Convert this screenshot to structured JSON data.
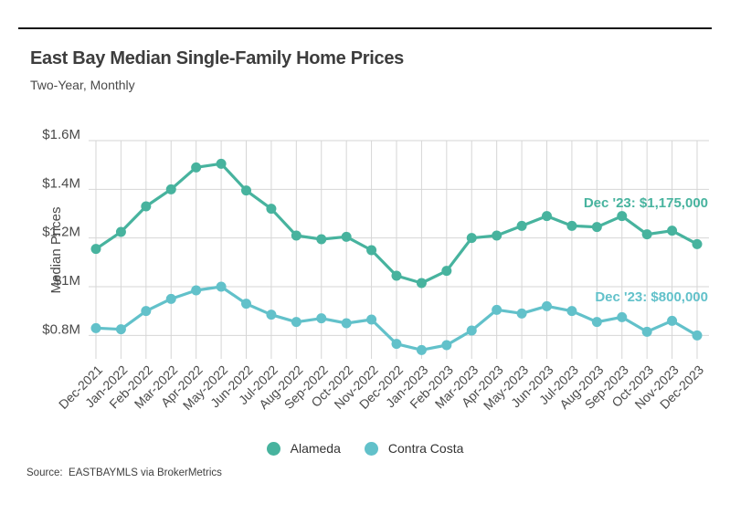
{
  "page": {
    "title": "East Bay Median Single-Family Home Prices",
    "subtitle": "Two-Year, Monthly",
    "source": "Source:  EASTBAYMLS via BrokerMetrics"
  },
  "legend": {
    "items": [
      {
        "label": "Alameda",
        "color": "#47b39e"
      },
      {
        "label": "Contra Costa",
        "color": "#62c1ca"
      }
    ]
  },
  "chart_data": {
    "type": "line",
    "title": "East Bay Median Single-Family Home Prices",
    "subtitle": "Two-Year, Monthly",
    "xlabel": "",
    "ylabel": "Median Prices",
    "grid": true,
    "legend_position": "bottom",
    "grid_color": "#d6d6d6",
    "label_color": "#4a4a4a",
    "ylim": [
      700000,
      1600000
    ],
    "yticks": [
      {
        "value": 800000,
        "label": "$0.8M"
      },
      {
        "value": 1000000,
        "label": "$1M"
      },
      {
        "value": 1200000,
        "label": "$1.2M"
      },
      {
        "value": 1400000,
        "label": "$1.4M"
      },
      {
        "value": 1600000,
        "label": "$1.6M"
      }
    ],
    "categories": [
      "Dec-2021",
      "Jan-2022",
      "Feb-2022",
      "Mar-2022",
      "Apr-2022",
      "May-2022",
      "Jun-2022",
      "Jul-2022",
      "Aug-2022",
      "Sep-2022",
      "Oct-2022",
      "Nov-2022",
      "Dec-2022",
      "Jan-2023",
      "Feb-2023",
      "Mar-2023",
      "Apr-2023",
      "May-2023",
      "Jun-2023",
      "Jul-2023",
      "Aug-2023",
      "Sep-2023",
      "Oct-2023",
      "Nov-2023",
      "Dec-2023"
    ],
    "series": [
      {
        "name": "Alameda",
        "color": "#47b39e",
        "values": [
          1155000,
          1225000,
          1330000,
          1400000,
          1490000,
          1505000,
          1395000,
          1320000,
          1210000,
          1195000,
          1205000,
          1150000,
          1045000,
          1015000,
          1065000,
          1200000,
          1210000,
          1250000,
          1290000,
          1250000,
          1245000,
          1290000,
          1215000,
          1230000,
          1175000
        ]
      },
      {
        "name": "Contra Costa",
        "color": "#62c1ca",
        "values": [
          830000,
          825000,
          900000,
          950000,
          985000,
          1000000,
          930000,
          885000,
          855000,
          870000,
          850000,
          865000,
          765000,
          740000,
          760000,
          820000,
          905000,
          890000,
          920000,
          900000,
          855000,
          875000,
          815000,
          860000,
          800000
        ]
      }
    ],
    "annotations": [
      {
        "text": "Dec '23: $1,175,000",
        "series": "Alameda",
        "color": "#47b39e"
      },
      {
        "text": "Dec '23: $800,000",
        "series": "Contra Costa",
        "color": "#62c1ca"
      }
    ]
  }
}
